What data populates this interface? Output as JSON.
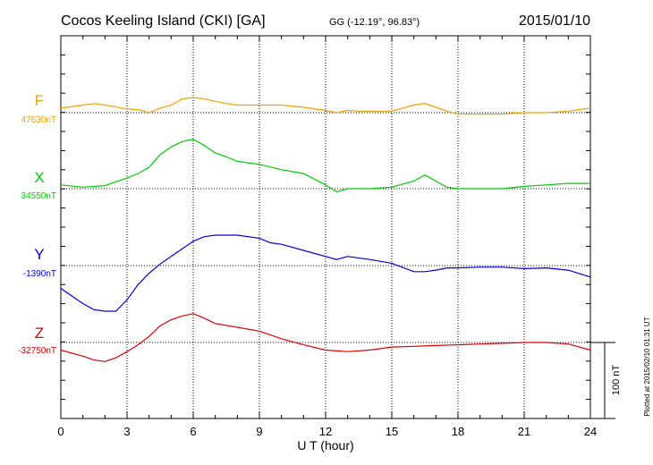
{
  "header": {
    "title": "Cocos Keeling Island (CKI)  [GA]",
    "coords": "GG (-12.19°,  96.83°)",
    "date": "2015/01/10"
  },
  "plotted_note": "Plotted at 2015/02/10 01:31  UT",
  "scale_bar_label": "100 nT",
  "chart_data": {
    "type": "line",
    "xlabel": "U T (hour)",
    "xlim": [
      0,
      24
    ],
    "xticks": [
      "0",
      "3",
      "6",
      "9",
      "12",
      "15",
      "18",
      "21",
      "24"
    ],
    "y_units": "nT per 100-nT scale bar",
    "series": [
      {
        "name": "F",
        "baseline_label": "47630nT",
        "color": "#f0a000",
        "x": [
          0,
          1,
          1.5,
          2,
          3,
          3.5,
          4,
          4.5,
          5,
          5.5,
          6,
          6.5,
          7,
          7.5,
          8,
          9,
          10,
          11,
          12,
          12.5,
          13,
          13.5,
          14,
          15,
          16,
          16.5,
          17,
          17.5,
          18,
          19,
          20,
          21,
          22,
          23,
          24
        ],
        "values": [
          6,
          10,
          12,
          10,
          5,
          4,
          0,
          6,
          10,
          18,
          20,
          18,
          15,
          12,
          10,
          10,
          10,
          7,
          3,
          0,
          3,
          2,
          2,
          2,
          10,
          12,
          7,
          2,
          -2,
          -2,
          -2,
          0,
          0,
          2,
          6
        ]
      },
      {
        "name": "X",
        "baseline_label": "34550nT",
        "color": "#00cc00",
        "x": [
          0,
          1,
          2,
          3,
          3.5,
          4,
          4.5,
          5,
          5.5,
          6,
          6.5,
          7,
          7.5,
          8,
          9,
          10,
          11,
          12,
          12.5,
          13,
          14,
          15,
          16,
          16.5,
          17,
          17.5,
          18,
          19,
          20,
          21,
          22,
          23,
          24
        ],
        "values": [
          5,
          2,
          4,
          14,
          20,
          28,
          45,
          55,
          62,
          65,
          57,
          47,
          42,
          36,
          32,
          25,
          20,
          5,
          -4,
          0,
          0,
          2,
          10,
          18,
          10,
          2,
          0,
          0,
          0,
          3,
          5,
          7,
          7
        ]
      },
      {
        "name": "Y",
        "baseline_label": "-1390nT",
        "color": "#0000dd",
        "x": [
          0,
          0.5,
          1,
          1.5,
          2,
          2.5,
          3,
          3.5,
          4,
          4.5,
          5,
          5.5,
          6,
          6.5,
          7,
          7.5,
          8,
          9,
          9.5,
          10,
          11,
          12,
          12.5,
          13,
          14,
          15,
          16,
          16.5,
          17,
          17.5,
          18,
          19,
          20,
          21,
          22,
          23,
          24
        ],
        "values": [
          -30,
          -40,
          -50,
          -58,
          -60,
          -60,
          -45,
          -25,
          -10,
          2,
          12,
          22,
          32,
          38,
          40,
          40,
          40,
          36,
          30,
          28,
          20,
          12,
          8,
          12,
          8,
          3,
          -8,
          -8,
          -6,
          -3,
          -3,
          -2,
          -2,
          -4,
          -3,
          -6,
          -15
        ]
      },
      {
        "name": "Z",
        "baseline_label": "-32750nT",
        "color": "#dd0000",
        "x": [
          0,
          1,
          1.5,
          2,
          2.5,
          3,
          3.5,
          4,
          4.5,
          5,
          5.5,
          6,
          6.5,
          7,
          8,
          9,
          10,
          11,
          12,
          13,
          14,
          15,
          16,
          17,
          18,
          19,
          20,
          21,
          22,
          23,
          24
        ],
        "values": [
          -10,
          -18,
          -23,
          -25,
          -20,
          -12,
          -3,
          8,
          22,
          30,
          35,
          38,
          32,
          25,
          20,
          15,
          5,
          -3,
          -10,
          -12,
          -10,
          -6,
          -5,
          -4,
          -3,
          -2,
          -1,
          0,
          0,
          -2,
          -10
        ]
      }
    ]
  }
}
